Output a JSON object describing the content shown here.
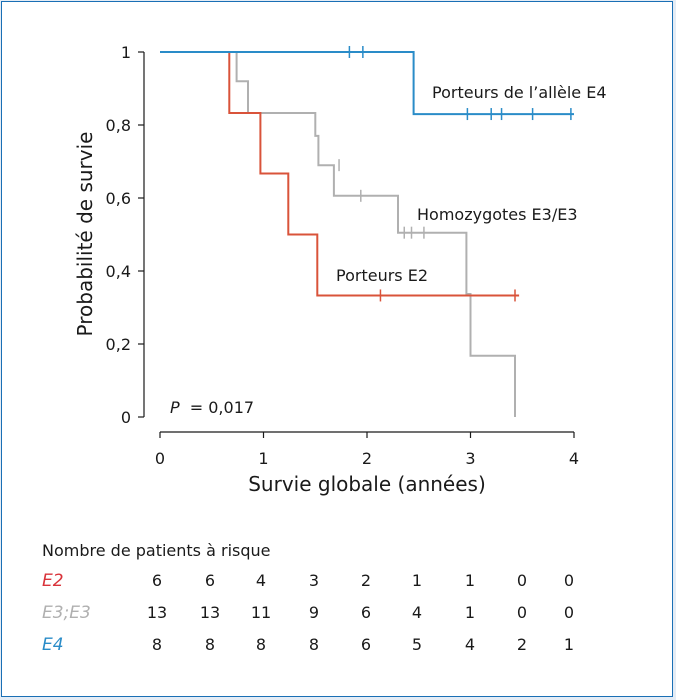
{
  "chart_data": {
    "type": "line",
    "xlabel": "Survie globale (années)",
    "ylabel": "Probabilité de survie",
    "xlim": [
      0,
      4
    ],
    "ylim": [
      0,
      1
    ],
    "x_ticks": [
      0,
      1,
      2,
      3,
      4
    ],
    "x_tick_labels": [
      "0",
      "1",
      "2",
      "3",
      "4"
    ],
    "y_ticks": [
      0,
      0.2,
      0.4,
      0.6,
      0.8,
      1
    ],
    "y_tick_labels": [
      "0",
      "0,2",
      "0,4",
      "0,6",
      "0,8",
      "1"
    ],
    "p_value": {
      "label": "P",
      "value": "= 0,017"
    },
    "series": [
      {
        "name": "Porteurs de l’allèle E4",
        "color": "#2a8cc8",
        "steps": [
          [
            0,
            1
          ],
          [
            2.45,
            1
          ],
          [
            2.45,
            0.83
          ],
          [
            4,
            0.83
          ]
        ],
        "censored": [
          [
            1.83,
            1
          ],
          [
            1.96,
            1
          ],
          [
            2.97,
            0.83
          ],
          [
            3.2,
            0.83
          ],
          [
            3.3,
            0.83
          ],
          [
            3.6,
            0.83
          ],
          [
            3.97,
            0.83
          ]
        ]
      },
      {
        "name": "Homozygotes E3/E3",
        "color": "#b0b0b0",
        "steps": [
          [
            0,
            1
          ],
          [
            0.74,
            1
          ],
          [
            0.74,
            0.92
          ],
          [
            0.85,
            0.92
          ],
          [
            0.85,
            0.833
          ],
          [
            1.5,
            0.833
          ],
          [
            1.5,
            0.77
          ],
          [
            1.53,
            0.77
          ],
          [
            1.53,
            0.69
          ],
          [
            1.68,
            0.69
          ],
          [
            1.68,
            0.606
          ],
          [
            2.3,
            0.606
          ],
          [
            2.3,
            0.505
          ],
          [
            2.96,
            0.505
          ],
          [
            2.96,
            0.337
          ],
          [
            3.0,
            0.337
          ],
          [
            3.0,
            0.168
          ],
          [
            3.43,
            0.168
          ],
          [
            3.43,
            0
          ]
        ],
        "censored": [
          [
            1.73,
            0.69
          ],
          [
            1.94,
            0.606
          ],
          [
            2.36,
            0.505
          ],
          [
            2.43,
            0.505
          ],
          [
            2.55,
            0.505
          ]
        ]
      },
      {
        "name": "Porteurs E2",
        "color": "#d9533a",
        "steps": [
          [
            0,
            1
          ],
          [
            0.67,
            1
          ],
          [
            0.67,
            0.833
          ],
          [
            0.97,
            0.833
          ],
          [
            0.97,
            0.667
          ],
          [
            1.24,
            0.667
          ],
          [
            1.24,
            0.5
          ],
          [
            1.52,
            0.5
          ],
          [
            1.52,
            0.333
          ],
          [
            3.47,
            0.333
          ]
        ],
        "censored": [
          [
            2.13,
            0.333
          ],
          [
            3.43,
            0.333
          ]
        ]
      }
    ],
    "risk_table": {
      "title": "Nombre de patients à risque",
      "rows": [
        {
          "label": "E2",
          "color": "#d9333a",
          "values": [
            "6",
            "6",
            "4",
            "3",
            "2",
            "1",
            "1",
            "0",
            "0"
          ]
        },
        {
          "label": "E3;E3",
          "color": "#b0b0b0",
          "values": [
            "13",
            "13",
            "11",
            "9",
            "6",
            "4",
            "1",
            "0",
            "0"
          ]
        },
        {
          "label": "E4",
          "color": "#2a8cc8",
          "values": [
            "8",
            "8",
            "8",
            "8",
            "6",
            "5",
            "4",
            "2",
            "1"
          ]
        }
      ]
    }
  }
}
